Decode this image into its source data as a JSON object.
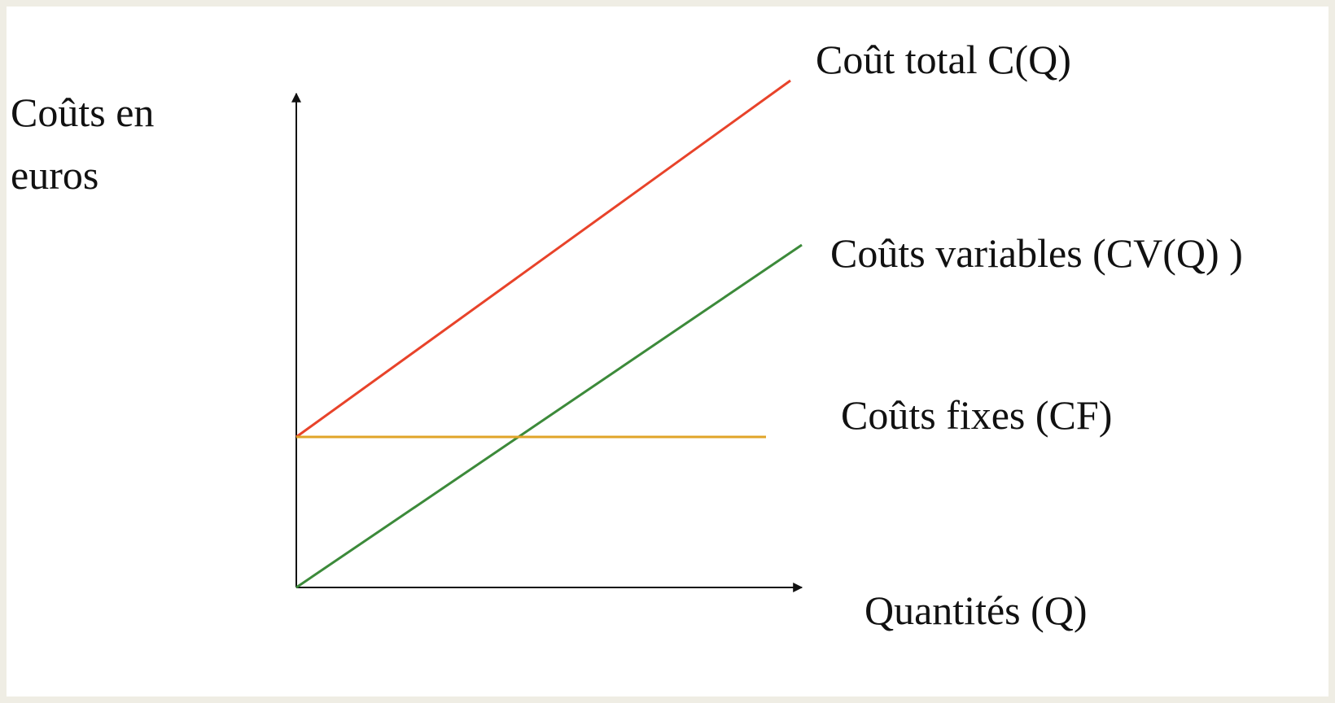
{
  "y_axis_label": [
    "Coûts en",
    "euros"
  ],
  "x_axis_label": "Quantités (Q)",
  "curves": [
    {
      "label": "Coût total C(Q)"
    },
    {
      "label": "Coûts variables (CV(Q) )"
    },
    {
      "label": "Coûts fixes (CF)"
    }
  ]
}
